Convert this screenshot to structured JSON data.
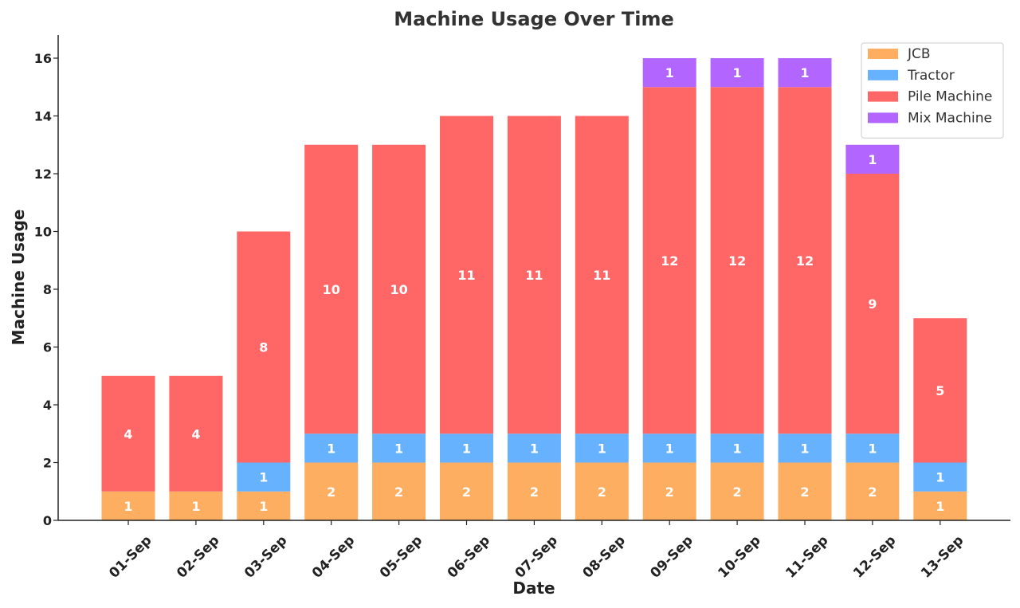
{
  "chart_data": {
    "type": "bar",
    "stacked": true,
    "title": "Machine Usage Over Time",
    "xlabel": "Date",
    "ylabel": "Machine Usage",
    "categories": [
      "01-Sep",
      "02-Sep",
      "03-Sep",
      "04-Sep",
      "05-Sep",
      "06-Sep",
      "07-Sep",
      "08-Sep",
      "09-Sep",
      "10-Sep",
      "11-Sep",
      "12-Sep",
      "13-Sep"
    ],
    "series": [
      {
        "name": "JCB",
        "color": "#fdae61",
        "values": [
          1,
          1,
          1,
          2,
          2,
          2,
          2,
          2,
          2,
          2,
          2,
          2,
          1
        ]
      },
      {
        "name": "Tractor",
        "color": "#66b2ff",
        "values": [
          0,
          0,
          1,
          1,
          1,
          1,
          1,
          1,
          1,
          1,
          1,
          1,
          1
        ]
      },
      {
        "name": "Pile Machine",
        "color": "#ff6666",
        "values": [
          4,
          4,
          8,
          10,
          10,
          11,
          11,
          11,
          12,
          12,
          12,
          9,
          5
        ]
      },
      {
        "name": "Mix Machine",
        "color": "#b266ff",
        "values": [
          0,
          0,
          0,
          0,
          0,
          0,
          0,
          0,
          1,
          1,
          1,
          1,
          0
        ]
      }
    ],
    "ylim": [
      0,
      16.8
    ],
    "yticks": [
      0,
      2,
      4,
      6,
      8,
      10,
      12,
      14,
      16
    ],
    "grid": false,
    "legend_position": "top-right",
    "data_labels": true
  }
}
